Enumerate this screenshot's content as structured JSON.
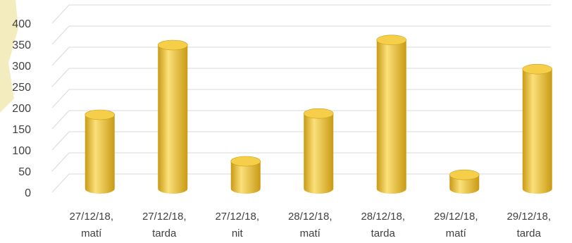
{
  "chart_data": {
    "type": "bar",
    "style": "3d-cylinder",
    "title": "",
    "xlabel": "",
    "ylabel": "",
    "ylim": [
      0,
      400
    ],
    "yticks": [
      0,
      50,
      100,
      150,
      200,
      250,
      300,
      350,
      400
    ],
    "grid": true,
    "legend": "none",
    "categories": [
      [
        "27/12/18,",
        "matí"
      ],
      [
        "27/12/18,",
        "tarda"
      ],
      [
        "27/12/18,",
        "nit"
      ],
      [
        "28/12/18,",
        "matí"
      ],
      [
        "28/12/18,",
        "tarda"
      ],
      [
        "29/12/18,",
        "matí"
      ],
      [
        "29/12/18,",
        "tarda"
      ]
    ],
    "values": [
      175,
      340,
      65,
      178,
      352,
      33,
      283
    ],
    "colors": {
      "bar_main": "#f2c12e",
      "bar_light": "#fbe07a",
      "bar_dark": "#c99a14",
      "bar_top": "#f6cf4a",
      "grid": "#d9d9d9",
      "decoration": "#eee6a8"
    }
  }
}
